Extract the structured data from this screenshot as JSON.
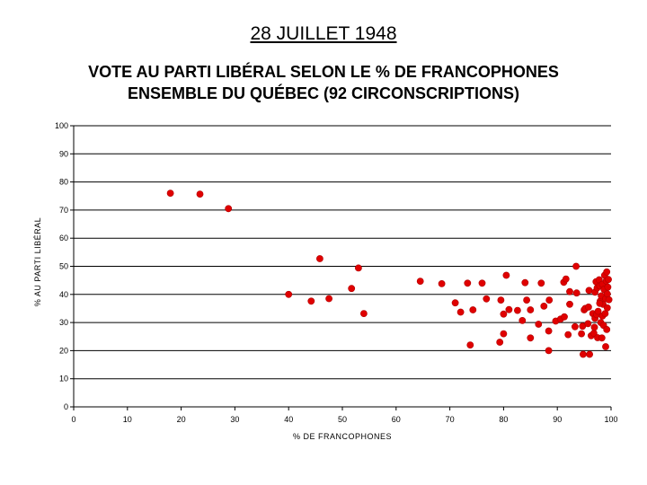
{
  "page": {
    "title": "28 JUILLET 1948"
  },
  "chart_data": {
    "type": "scatter",
    "title": "VOTE AU PARTI LIBÉRAL SELON LE % DE FRANCOPHONES",
    "subtitle": "ENSEMBLE DU QUÉBEC (92 CIRCONSCRIPTIONS)",
    "xlabel": "% DE FRANCOPHONES",
    "ylabel": "% AU PARTI LIBÉRAL",
    "xlim": [
      0,
      100
    ],
    "ylim": [
      0,
      100
    ],
    "x_ticks": [
      "0",
      "10",
      "20",
      "30",
      "40",
      "50",
      "60",
      "70",
      "80",
      "90",
      "100"
    ],
    "y_ticks": [
      "0",
      "10",
      "20",
      "30",
      "40",
      "50",
      "60",
      "70",
      "80",
      "90",
      "100"
    ],
    "grid": "horizontal",
    "marker_color": "#e00000",
    "points": [
      [
        18,
        76
      ],
      [
        23.5,
        75.7
      ],
      [
        28.8,
        70.5
      ],
      [
        45.8,
        52.7
      ],
      [
        53,
        49.4
      ],
      [
        40,
        40
      ],
      [
        44.2,
        37.6
      ],
      [
        47.5,
        38.5
      ],
      [
        51.7,
        42.1
      ],
      [
        54,
        33.2
      ],
      [
        64.5,
        44.7
      ],
      [
        68.5,
        43.8
      ],
      [
        71,
        37
      ],
      [
        72,
        33.7
      ],
      [
        73.3,
        44
      ],
      [
        73.8,
        22
      ],
      [
        74.3,
        34.5
      ],
      [
        76,
        44
      ],
      [
        76.8,
        38.4
      ],
      [
        79.3,
        23
      ],
      [
        79.5,
        38
      ],
      [
        80,
        33
      ],
      [
        80,
        26
      ],
      [
        80.5,
        46.8
      ],
      [
        81,
        34.6
      ],
      [
        82.6,
        34.3
      ],
      [
        83.5,
        30.7
      ],
      [
        84,
        44.2
      ],
      [
        84.3,
        38
      ],
      [
        85,
        34.5
      ],
      [
        85,
        24.5
      ],
      [
        86.5,
        29.4
      ],
      [
        87,
        44
      ],
      [
        87.5,
        35.8
      ],
      [
        88.5,
        38
      ],
      [
        88.4,
        27
      ],
      [
        88.4,
        20
      ],
      [
        89.7,
        30.5
      ],
      [
        90.6,
        31.2
      ],
      [
        91.3,
        32
      ],
      [
        91.2,
        44.3
      ],
      [
        91.6,
        45.5
      ],
      [
        92,
        25.7
      ],
      [
        92.3,
        36.5
      ],
      [
        92.3,
        41
      ],
      [
        93.3,
        28.5
      ],
      [
        93.6,
        40.5
      ],
      [
        93.5,
        50
      ],
      [
        94.5,
        26
      ],
      [
        94.7,
        28.7
      ],
      [
        94.8,
        18.7
      ],
      [
        95,
        34.5
      ],
      [
        95.2,
        35
      ],
      [
        95.8,
        35.5
      ],
      [
        95.7,
        29.6
      ],
      [
        95.9,
        41.4
      ],
      [
        96,
        18.7
      ],
      [
        96.3,
        25.3
      ],
      [
        96.6,
        33.2
      ],
      [
        96.8,
        26.2
      ],
      [
        96.9,
        28.3
      ],
      [
        97,
        31.5
      ],
      [
        97,
        40.8
      ],
      [
        97.2,
        44.5
      ],
      [
        97.3,
        32.8
      ],
      [
        97.4,
        42.3
      ],
      [
        97.5,
        24.6
      ],
      [
        97.6,
        34
      ],
      [
        97.8,
        45.2
      ],
      [
        97.9,
        43
      ],
      [
        98,
        37.6
      ],
      [
        98.1,
        30
      ],
      [
        98.2,
        39.5
      ],
      [
        98.3,
        24.5
      ],
      [
        98.4,
        43.6
      ],
      [
        98.4,
        32.3
      ],
      [
        98.5,
        36.5
      ],
      [
        98.6,
        29
      ],
      [
        98.7,
        41.8
      ],
      [
        98.8,
        46.8
      ],
      [
        98.9,
        33.2
      ],
      [
        99,
        21.4
      ],
      [
        99,
        38.5
      ],
      [
        99.1,
        44.8
      ],
      [
        99.2,
        48
      ],
      [
        99.3,
        40.2
      ],
      [
        99.3,
        35.2
      ],
      [
        99.4,
        42.6
      ],
      [
        99.5,
        45.3
      ],
      [
        99.6,
        38.1
      ],
      [
        99.2,
        27.5
      ],
      [
        97.9,
        36.8
      ]
    ]
  }
}
